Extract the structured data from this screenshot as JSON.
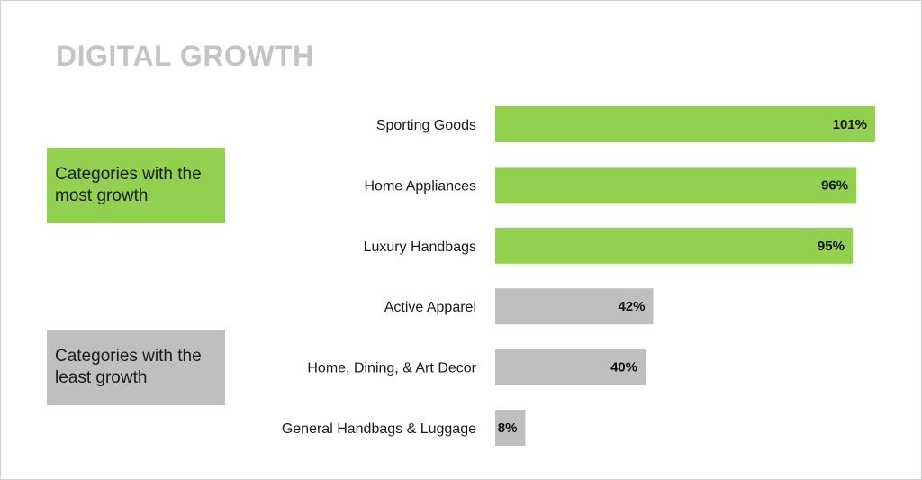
{
  "chart_data": {
    "type": "bar",
    "orientation": "horizontal",
    "title": "DIGITAL GROWTH",
    "categories": [
      "Sporting Goods",
      "Home Appliances",
      "Luxury Handbags",
      "Active Apparel",
      "Home, Dining, & Art Decor",
      "General Handbags  & Luggage"
    ],
    "values": [
      101,
      96,
      95,
      42,
      40,
      8
    ],
    "value_labels": [
      "101%",
      "96%",
      "95%",
      "42%",
      "40%",
      "8%"
    ],
    "bar_groups": [
      "most",
      "most",
      "most",
      "least",
      "least",
      "least"
    ],
    "xlim": [
      0,
      101
    ],
    "grid": false,
    "legend": false
  },
  "groups": {
    "most": {
      "label": "Categories with the most growth",
      "color": "#92d050"
    },
    "least": {
      "label": "Categories with the least growth",
      "color": "#bfbfbf"
    }
  }
}
